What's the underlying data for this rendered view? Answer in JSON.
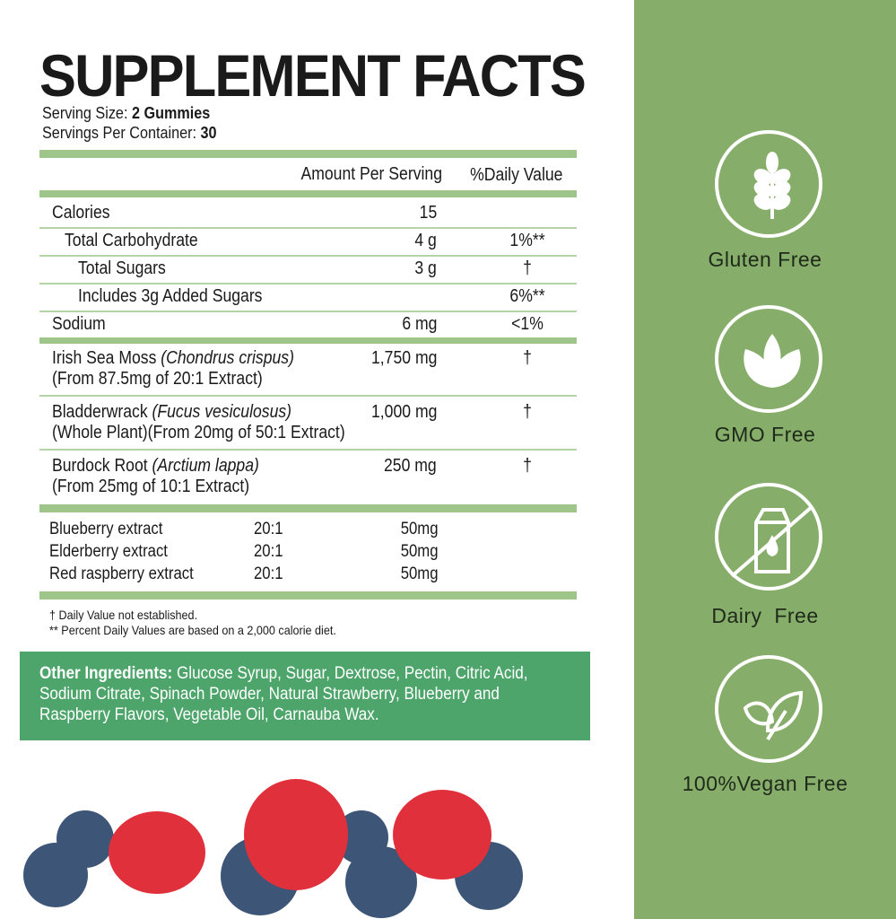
{
  "title": "SUPPLEMENT FACTS",
  "serving_size_label": "Serving Size:",
  "serving_size": "2 Gummies",
  "servings_label": "Servings Per Container:",
  "servings": "30",
  "header": {
    "amount": "Amount Per Serving",
    "dv": "%Daily Value"
  },
  "rows": [
    {
      "name": "Calories",
      "amount": "15",
      "dv": ""
    },
    {
      "name": "Total Carbohydrate",
      "amount": "4 g",
      "dv": "1%**"
    },
    {
      "name": "Total Sugars",
      "amount": "3 g",
      "dv": "†"
    },
    {
      "name": "Includes 3g Added Sugars",
      "amount": "",
      "dv": "6%**"
    },
    {
      "name": "Sodium",
      "amount": "6 mg",
      "dv": "<1%"
    }
  ],
  "herbs": [
    {
      "name": "Irish Sea Moss",
      "latin": "(Chondrus crispus)",
      "note": "(From 87.5mg of 20:1 Extract)",
      "amount": "1,750 mg",
      "dv": "†"
    },
    {
      "name": "Bladderwrack",
      "latin": "(Fucus vesiculosus)",
      "note": "(Whole Plant)(From 20mg of 50:1 Extract)",
      "amount": "1,000 mg",
      "dv": "†"
    },
    {
      "name": "Burdock Root",
      "latin": "(Arctium lappa)",
      "note": "(From 25mg of 10:1 Extract)",
      "amount": "250 mg",
      "dv": "†"
    }
  ],
  "extracts": [
    {
      "name": "Blueberry extract",
      "ratio": "20:1",
      "amount": "50mg"
    },
    {
      "name": "Elderberry extract",
      "ratio": "20:1",
      "amount": "50mg"
    },
    {
      "name": "Red raspberry extract",
      "ratio": "20:1",
      "amount": "50mg"
    }
  ],
  "footnotes": [
    "† Daily Value not established.",
    "** Percent Daily Values are based on a 2,000 calorie diet."
  ],
  "other_ingredients": {
    "label": "Other Ingredients:",
    "text": " Glucose Syrup, Sugar, Dextrose, Pectin, Citric Acid, Sodium Citrate, Spinach Powder, Natural Strawberry, Blueberry and Raspberry Flavors, Vegetable Oil, Carnauba Wax."
  },
  "badges": [
    {
      "label": "Gluten Free",
      "icon": "wheat-icon"
    },
    {
      "label": "GMO Free",
      "icon": "leaves-icon"
    },
    {
      "label": "Dairy  Free",
      "icon": "no-milk-icon"
    },
    {
      "label": "100%Vegan Free",
      "icon": "vegan-leaf-icon"
    }
  ],
  "colors": {
    "panel": "#86ad69",
    "bar": "#9ec58a",
    "ingredients_bg": "#4ea56b"
  }
}
